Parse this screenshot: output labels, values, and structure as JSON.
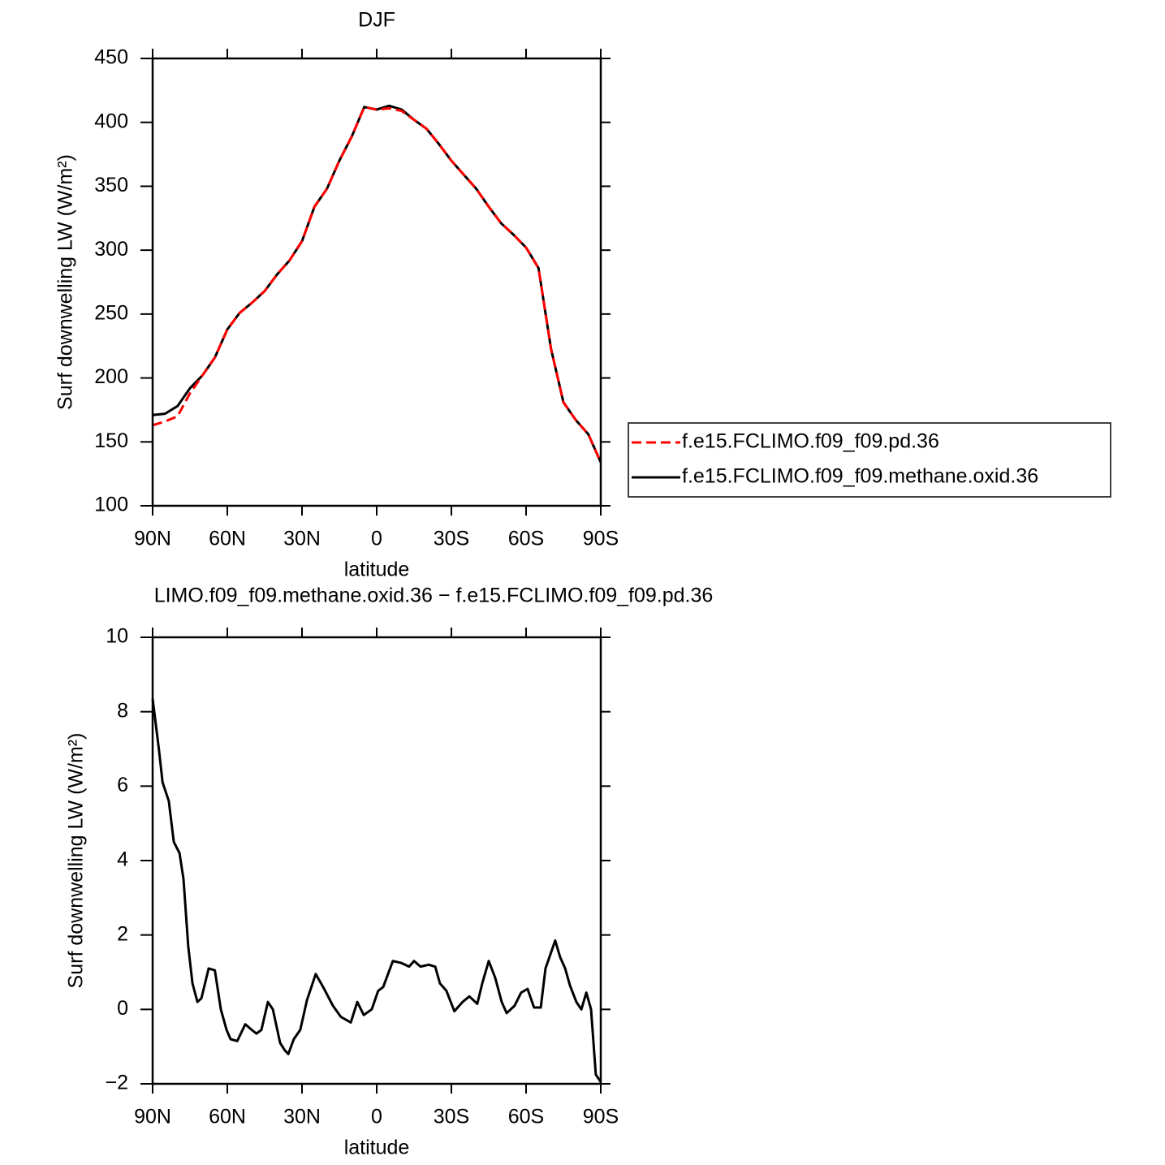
{
  "chart_data": [
    {
      "type": "line",
      "title": "DJF",
      "xlabel": "latitude",
      "ylabel": "Surf downwelling LW (W/m²)",
      "x": [
        90,
        85,
        80,
        75,
        70,
        65,
        60,
        55,
        50,
        45,
        40,
        35,
        30,
        25,
        20,
        15,
        10,
        5,
        0,
        -5,
        -10,
        -15,
        -20,
        -25,
        -30,
        -35,
        -40,
        -45,
        -50,
        -55,
        -60,
        -65,
        -70,
        -75,
        -80,
        -85,
        -90
      ],
      "series": [
        {
          "name": "f.e15.FCLIMO.f09_f09.pd.36",
          "color": "#ff0000",
          "style": "dashed",
          "values": [
            163,
            166,
            170,
            188,
            202,
            216,
            238,
            251,
            259,
            268,
            281,
            292,
            307,
            334,
            348,
            370,
            389,
            412,
            410,
            411,
            409,
            402,
            395,
            383,
            370,
            359,
            348,
            334,
            321,
            312,
            302,
            286,
            223,
            181,
            167,
            156,
            134
          ]
        },
        {
          "name": "f.e15.FCLIMO.f09_f09.methane.oxid.36",
          "color": "#000000",
          "style": "solid",
          "values": [
            171,
            172,
            178,
            192,
            202,
            216,
            238,
            251,
            259,
            268,
            281,
            292,
            307,
            334,
            348,
            370,
            389,
            412,
            410,
            413,
            410,
            402,
            395,
            383,
            370,
            359,
            348,
            334,
            321,
            312,
            302,
            286,
            223,
            181,
            167,
            156,
            134
          ]
        }
      ],
      "xlim": [
        90,
        -90
      ],
      "xticks": [
        {
          "value": 90,
          "label": "90N"
        },
        {
          "value": 60,
          "label": "60N"
        },
        {
          "value": 30,
          "label": "30N"
        },
        0,
        {
          "value": -30,
          "label": "30S"
        },
        {
          "value": -60,
          "label": "60S"
        },
        {
          "value": -90,
          "label": "90S"
        }
      ],
      "ylim": [
        100,
        450
      ],
      "yticks": [
        100,
        150,
        200,
        250,
        300,
        350,
        400,
        450
      ],
      "legend": "right"
    },
    {
      "type": "line",
      "title": "LIMO.f09_f09.methane.oxid.36 − f.e15.FCLIMO.f09_f09.pd.36",
      "xlabel": "latitude",
      "ylabel": "Surf downwelling LW (W/m²)",
      "x": [
        90,
        87.5,
        86,
        83.5,
        81.5,
        79.2,
        77.6,
        75.7,
        74,
        72,
        70.4,
        67.5,
        65,
        62.6,
        60.3,
        58.7,
        56,
        52.8,
        50.2,
        48.3,
        46.3,
        43.7,
        41.7,
        38.8,
        36.9,
        35.5,
        33.3,
        30.7,
        28,
        24.5,
        21.5,
        17.6,
        14.4,
        10.4,
        7.8,
        5.2,
        2,
        -0.6,
        -2.6,
        -6.5,
        -9.8,
        -13,
        -15,
        -17.6,
        -20.9,
        -23.5,
        -25.4,
        -28,
        -31.2,
        -34.5,
        -37.2,
        -40.4,
        -42.4,
        -45,
        -47.6,
        -50.2,
        -52.2,
        -55.4,
        -58,
        -60.6,
        -63.2,
        -65.9,
        -67.8,
        -71.7,
        -73.7,
        -75.7,
        -77.6,
        -80.2,
        -82.2,
        -84.2,
        -86.1,
        -88,
        -90
      ],
      "color": "#000000",
      "values": [
        8.35,
        7.0,
        6.1,
        5.6,
        4.5,
        4.2,
        3.5,
        1.7,
        0.7,
        0.2,
        0.3,
        1.1,
        1.05,
        0,
        -0.55,
        -0.8,
        -0.85,
        -0.4,
        -0.55,
        -0.65,
        -0.55,
        0.2,
        0,
        -0.9,
        -1.1,
        -1.2,
        -0.8,
        -0.55,
        0.25,
        0.95,
        0.6,
        0.1,
        -0.2,
        -0.35,
        0.2,
        -0.15,
        0,
        0.5,
        0.6,
        1.3,
        1.25,
        1.15,
        1.3,
        1.15,
        1.2,
        1.15,
        0.7,
        0.5,
        -0.05,
        0.2,
        0.35,
        0.15,
        0.7,
        1.3,
        0.85,
        0.2,
        -0.1,
        0.1,
        0.45,
        0.55,
        0.05,
        0.05,
        1.1,
        1.85,
        1.4,
        1.1,
        0.65,
        0.2,
        0,
        0.45,
        0,
        -1.75,
        -1.95
      ],
      "xlim": [
        90,
        -90
      ],
      "xticks": [
        {
          "value": 90,
          "label": "90N"
        },
        {
          "value": 60,
          "label": "60N"
        },
        {
          "value": 30,
          "label": "30N"
        },
        0,
        {
          "value": -30,
          "label": "30S"
        },
        {
          "value": -60,
          "label": "60S"
        },
        {
          "value": -90,
          "label": "90S"
        }
      ],
      "ylim": [
        -2,
        10
      ],
      "yticks": [
        -2,
        0,
        2,
        4,
        6,
        8,
        10
      ]
    }
  ]
}
